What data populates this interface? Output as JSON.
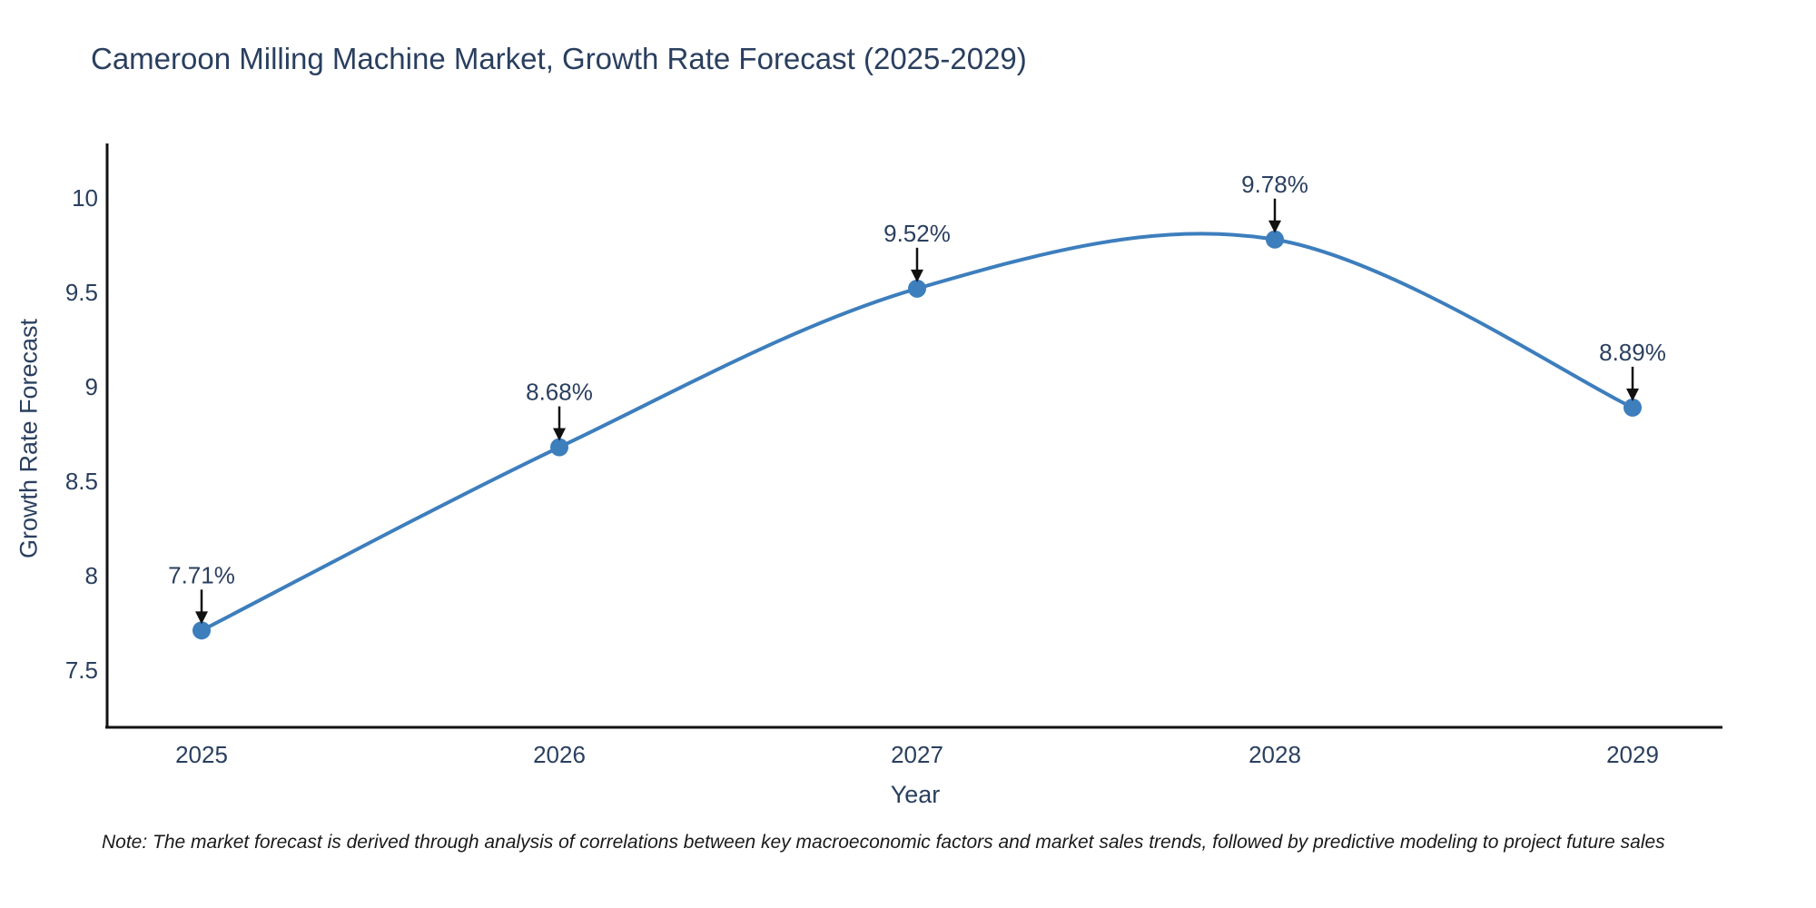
{
  "title": "Cameroon Milling Machine Market, Growth Rate Forecast (2025-2029)",
  "note": "Note: The market forecast is derived through analysis of correlations between key macroeconomic factors and market sales trends, followed by predictive modeling to project future sales",
  "chart_data": {
    "type": "line",
    "line_shape": "spline",
    "x": [
      2025,
      2026,
      2027,
      2028,
      2029
    ],
    "values": [
      7.71,
      8.68,
      9.52,
      9.78,
      8.89
    ],
    "point_labels": [
      "7.71%",
      "8.68%",
      "9.52%",
      "9.78%",
      "8.89%"
    ],
    "title": "Cameroon Milling Machine Market, Growth Rate Forecast (2025-2029)",
    "xlabel": "Year",
    "ylabel": "Growth Rate Forecast",
    "yticks": [
      7.5,
      8,
      8.5,
      9,
      9.5,
      10
    ],
    "ylim": [
      7.2,
      10.28
    ],
    "grid": false,
    "legend": "none",
    "colors": {
      "line": "#3d7ebd",
      "marker": "#3d7ebd",
      "arrow": "#111111",
      "axis": "#111111",
      "text": "#2a3f5f",
      "note": "#1a1a1a"
    }
  }
}
